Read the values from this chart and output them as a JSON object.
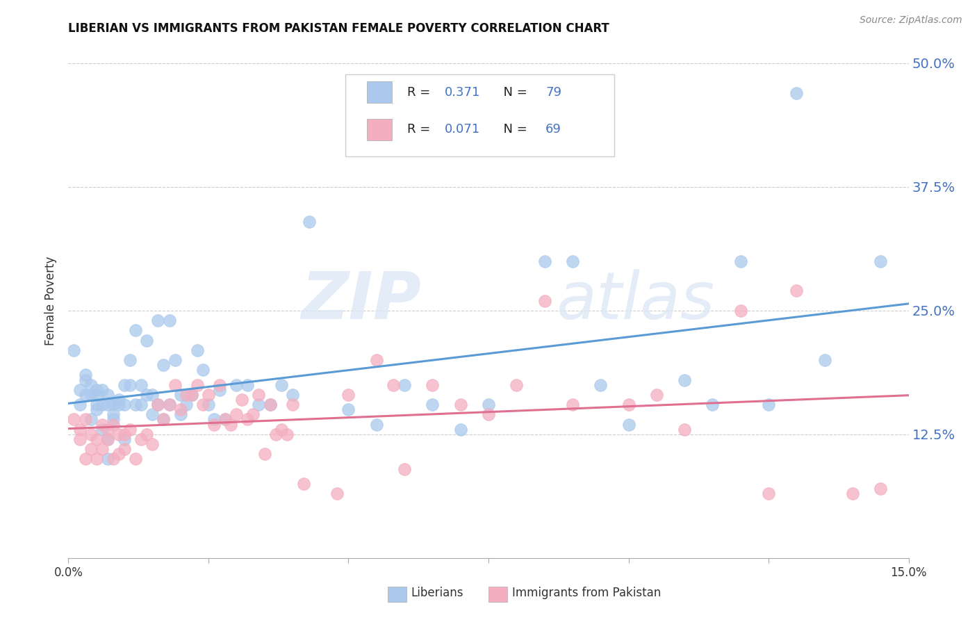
{
  "title": "LIBERIAN VS IMMIGRANTS FROM PAKISTAN FEMALE POVERTY CORRELATION CHART",
  "source": "Source: ZipAtlas.com",
  "ylabel": "Female Poverty",
  "xlim": [
    0.0,
    0.15
  ],
  "ylim": [
    0.0,
    0.52
  ],
  "yticks": [
    0.0,
    0.125,
    0.25,
    0.375,
    0.5
  ],
  "ytick_labels": [
    "",
    "12.5%",
    "25.0%",
    "37.5%",
    "50.0%"
  ],
  "grid_color": "#cccccc",
  "background_color": "#ffffff",
  "liberian_color": "#aac9ed",
  "pakistan_color": "#f4aec0",
  "liberian_R": 0.371,
  "liberian_N": 79,
  "pakistan_R": 0.071,
  "pakistan_N": 69,
  "legend_label_1": "Liberians",
  "legend_label_2": "Immigrants from Pakistan",
  "watermark_1": "ZIP",
  "watermark_2": "atlas",
  "line_color_blue": "#5b9bd5",
  "line_color_pink": "#e07090",
  "text_blue": "#4472c4",
  "text_dark": "#333333",
  "liberian_x": [
    0.001,
    0.002,
    0.002,
    0.003,
    0.003,
    0.003,
    0.004,
    0.004,
    0.004,
    0.005,
    0.005,
    0.005,
    0.005,
    0.006,
    0.006,
    0.006,
    0.007,
    0.007,
    0.007,
    0.007,
    0.008,
    0.008,
    0.008,
    0.009,
    0.009,
    0.01,
    0.01,
    0.01,
    0.011,
    0.011,
    0.012,
    0.012,
    0.013,
    0.013,
    0.014,
    0.014,
    0.015,
    0.015,
    0.016,
    0.016,
    0.017,
    0.017,
    0.018,
    0.018,
    0.019,
    0.02,
    0.02,
    0.021,
    0.022,
    0.023,
    0.024,
    0.025,
    0.026,
    0.027,
    0.028,
    0.03,
    0.032,
    0.034,
    0.036,
    0.038,
    0.04,
    0.043,
    0.05,
    0.055,
    0.06,
    0.065,
    0.07,
    0.075,
    0.085,
    0.09,
    0.095,
    0.1,
    0.11,
    0.115,
    0.12,
    0.125,
    0.13,
    0.135,
    0.145
  ],
  "liberian_y": [
    0.21,
    0.17,
    0.155,
    0.18,
    0.185,
    0.165,
    0.165,
    0.175,
    0.14,
    0.155,
    0.17,
    0.165,
    0.15,
    0.155,
    0.17,
    0.13,
    0.155,
    0.165,
    0.12,
    0.1,
    0.155,
    0.145,
    0.14,
    0.155,
    0.16,
    0.175,
    0.155,
    0.12,
    0.2,
    0.175,
    0.23,
    0.155,
    0.175,
    0.155,
    0.22,
    0.165,
    0.165,
    0.145,
    0.24,
    0.155,
    0.195,
    0.14,
    0.24,
    0.155,
    0.2,
    0.165,
    0.145,
    0.155,
    0.165,
    0.21,
    0.19,
    0.155,
    0.14,
    0.17,
    0.14,
    0.175,
    0.175,
    0.155,
    0.155,
    0.175,
    0.165,
    0.34,
    0.15,
    0.135,
    0.175,
    0.155,
    0.13,
    0.155,
    0.3,
    0.3,
    0.175,
    0.135,
    0.18,
    0.155,
    0.3,
    0.155,
    0.47,
    0.2,
    0.3
  ],
  "pakistan_x": [
    0.001,
    0.002,
    0.002,
    0.003,
    0.003,
    0.004,
    0.004,
    0.005,
    0.005,
    0.006,
    0.006,
    0.007,
    0.007,
    0.008,
    0.008,
    0.009,
    0.009,
    0.01,
    0.01,
    0.011,
    0.012,
    0.013,
    0.014,
    0.015,
    0.016,
    0.017,
    0.018,
    0.019,
    0.02,
    0.021,
    0.022,
    0.023,
    0.024,
    0.025,
    0.026,
    0.027,
    0.028,
    0.029,
    0.03,
    0.031,
    0.032,
    0.033,
    0.034,
    0.035,
    0.036,
    0.037,
    0.038,
    0.039,
    0.04,
    0.042,
    0.048,
    0.05,
    0.055,
    0.058,
    0.06,
    0.065,
    0.07,
    0.075,
    0.08,
    0.085,
    0.09,
    0.1,
    0.105,
    0.11,
    0.12,
    0.125,
    0.13,
    0.14,
    0.145
  ],
  "pakistan_y": [
    0.14,
    0.13,
    0.12,
    0.14,
    0.1,
    0.125,
    0.11,
    0.12,
    0.1,
    0.135,
    0.11,
    0.13,
    0.12,
    0.135,
    0.1,
    0.125,
    0.105,
    0.125,
    0.11,
    0.13,
    0.1,
    0.12,
    0.125,
    0.115,
    0.155,
    0.14,
    0.155,
    0.175,
    0.15,
    0.165,
    0.165,
    0.175,
    0.155,
    0.165,
    0.135,
    0.175,
    0.14,
    0.135,
    0.145,
    0.16,
    0.14,
    0.145,
    0.165,
    0.105,
    0.155,
    0.125,
    0.13,
    0.125,
    0.155,
    0.075,
    0.065,
    0.165,
    0.2,
    0.175,
    0.09,
    0.175,
    0.155,
    0.145,
    0.175,
    0.26,
    0.155,
    0.155,
    0.165,
    0.13,
    0.25,
    0.065,
    0.27,
    0.065,
    0.07
  ]
}
